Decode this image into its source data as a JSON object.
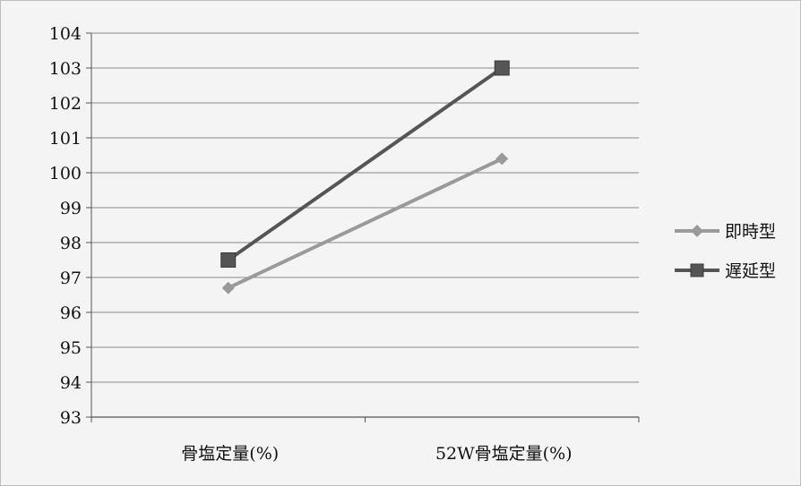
{
  "chart_data": {
    "type": "line",
    "categories": [
      "骨塩定量(%)",
      "52W骨塩定量(%)"
    ],
    "series": [
      {
        "name": "即時型",
        "values": [
          96.7,
          100.4
        ],
        "color": "#9a9a9a",
        "marker": "diamond"
      },
      {
        "name": "遅延型",
        "values": [
          97.5,
          103.0
        ],
        "color": "#555555",
        "marker": "square"
      }
    ],
    "ylim": [
      93,
      104
    ],
    "yticks": [
      "93",
      "94",
      "95",
      "96",
      "97",
      "98",
      "99",
      "100",
      "101",
      "102",
      "103",
      "104"
    ],
    "grid": true,
    "legend": "right"
  }
}
